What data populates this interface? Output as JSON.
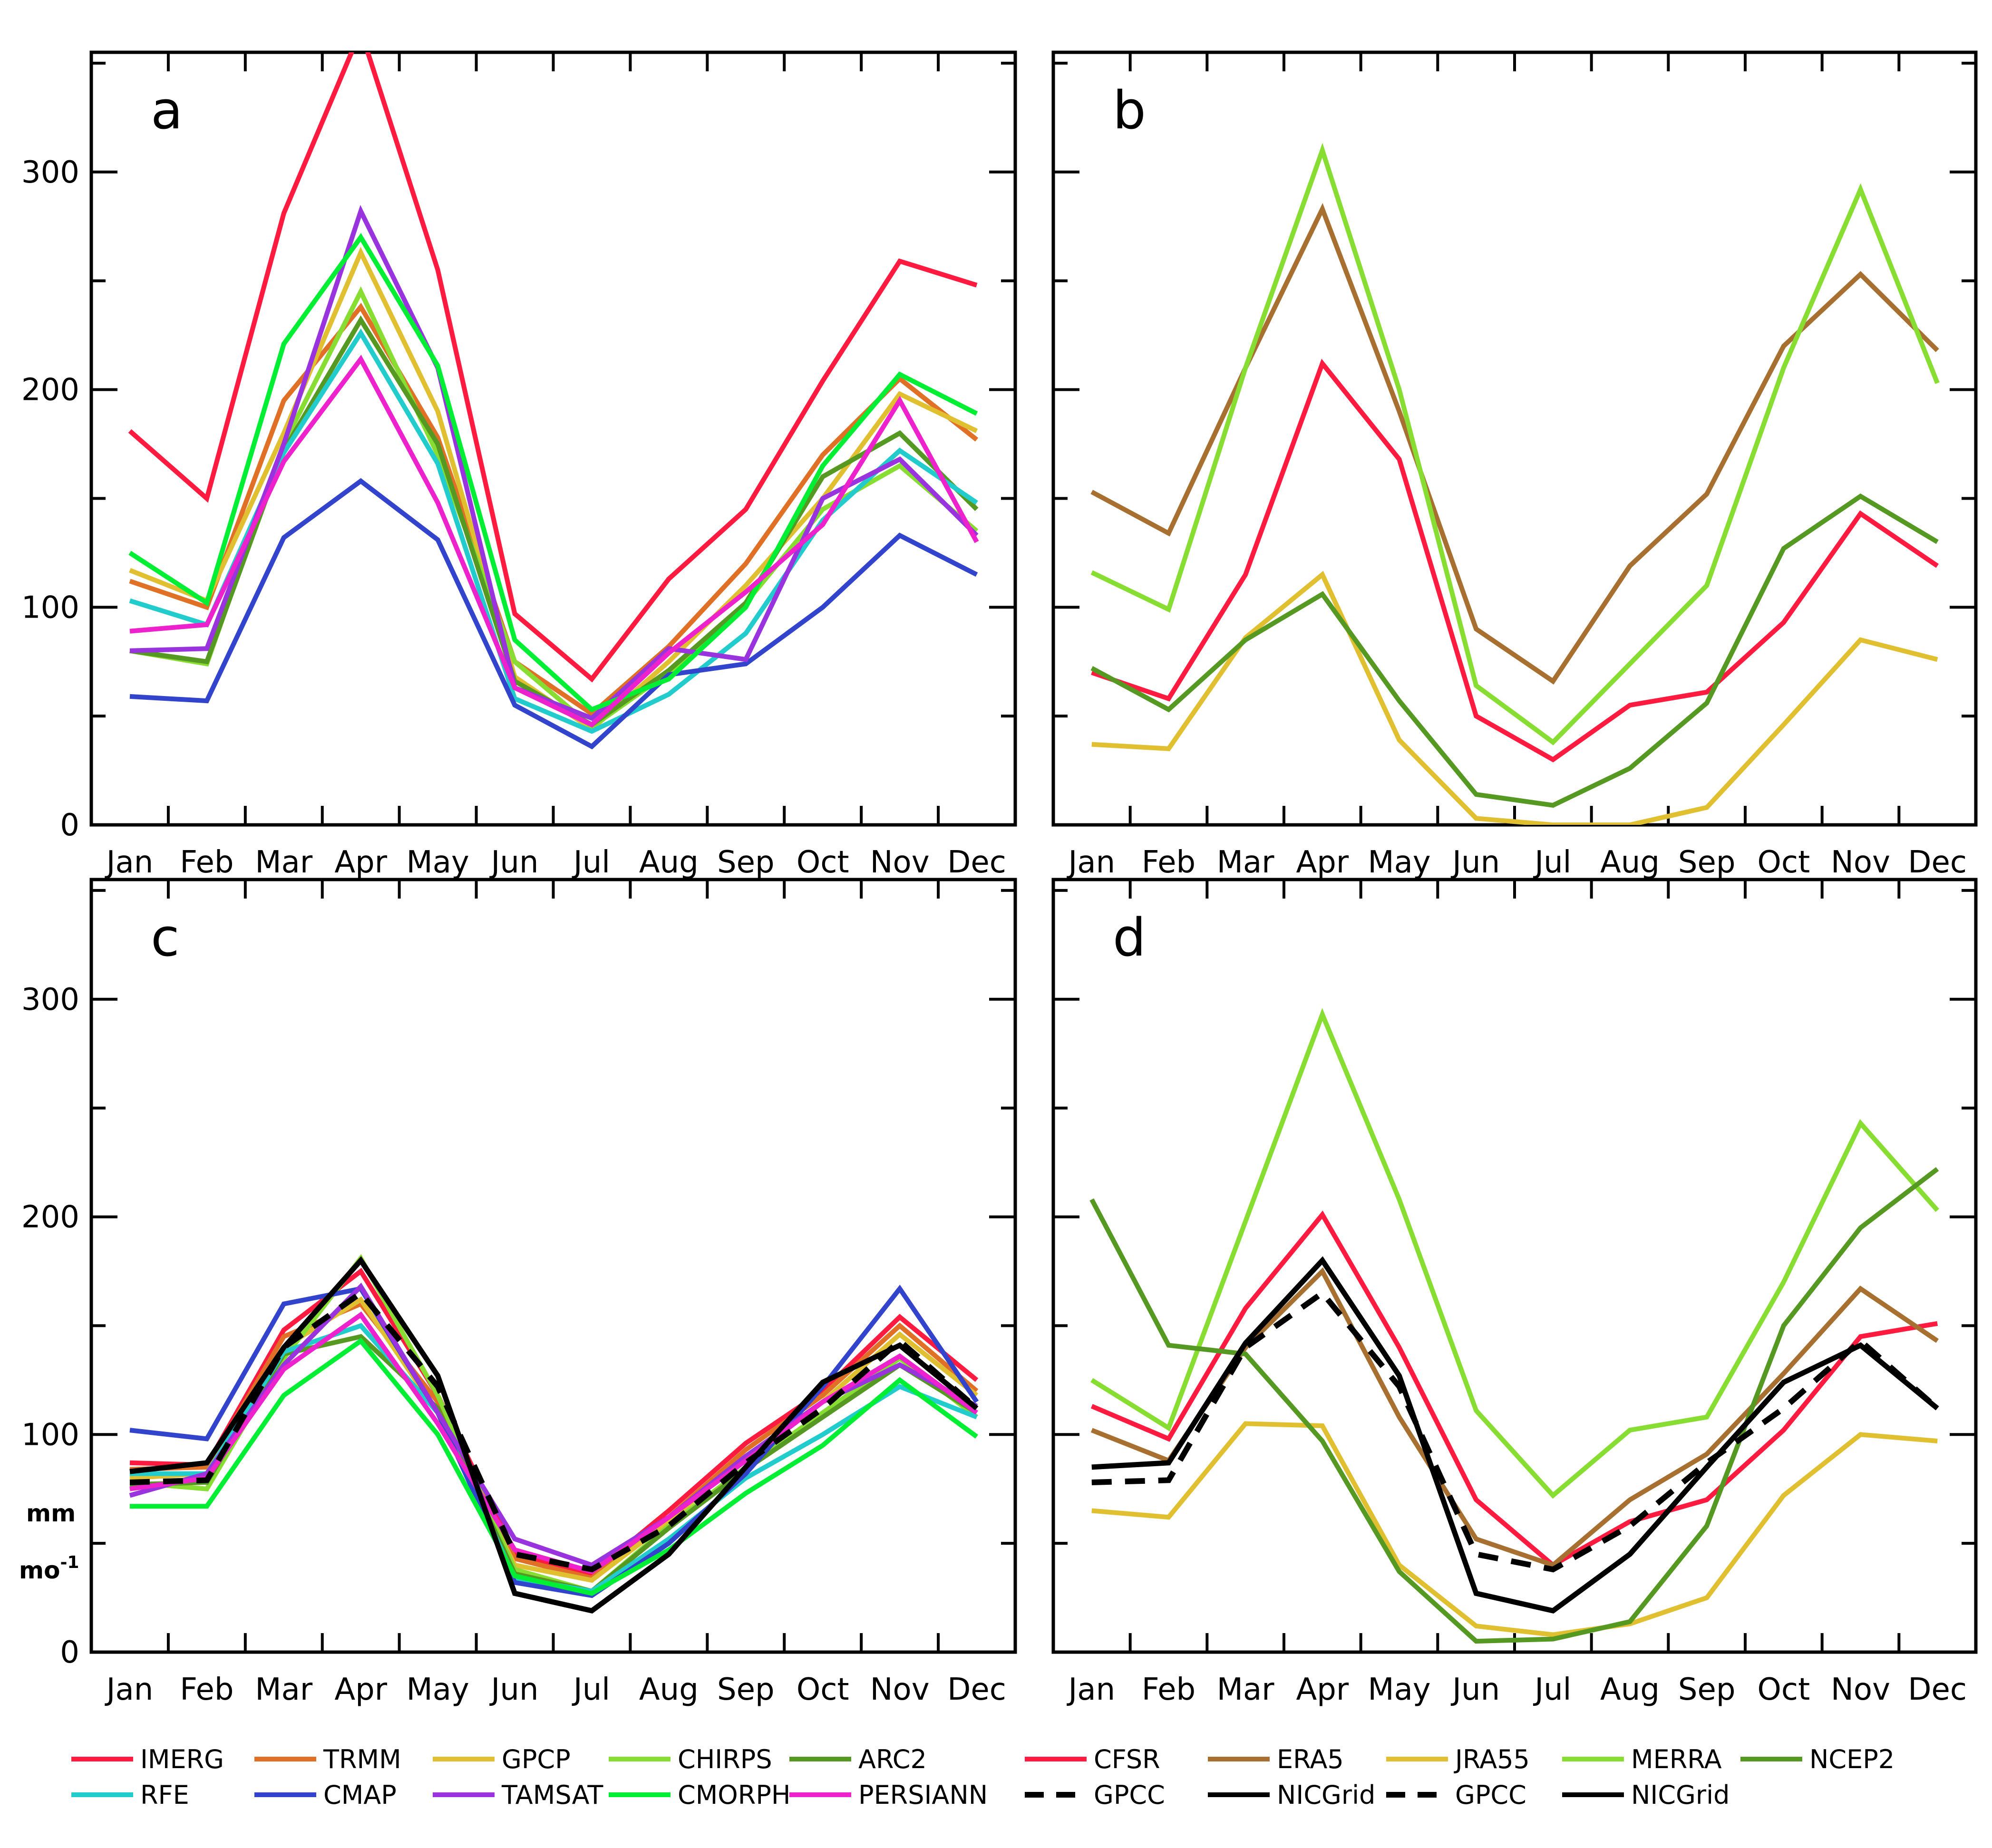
{
  "chart_data": [
    {
      "type": "line",
      "panel": "a",
      "categories": [
        "Jan",
        "Feb",
        "Mar",
        "Apr",
        "May",
        "Jun",
        "Jul",
        "Aug",
        "Sep",
        "Oct",
        "Nov",
        "Dec"
      ],
      "ylim": [
        0,
        355
      ],
      "yticks": [
        0,
        100,
        200,
        300
      ],
      "series": [
        {
          "name": "IMERG",
          "color": "#ff1a40",
          "values": [
            181,
            150,
            281,
            365,
            255,
            97,
            67,
            113,
            145,
            204,
            259,
            248
          ]
        },
        {
          "name": "TRMM",
          "color": "#e07025",
          "values": [
            112,
            100,
            195,
            238,
            178,
            75,
            51,
            82,
            120,
            170,
            205,
            177
          ]
        },
        {
          "name": "GPCP",
          "color": "#e0c030",
          "values": [
            117,
            103,
            180,
            263,
            190,
            68,
            44,
            75,
            110,
            150,
            198,
            181
          ]
        },
        {
          "name": "CHIRPS",
          "color": "#88dd33",
          "values": [
            80,
            74,
            175,
            245,
            170,
            75,
            45,
            70,
            102,
            145,
            165,
            135
          ]
        },
        {
          "name": "ARC2",
          "color": "#559922",
          "values": [
            80,
            75,
            172,
            232,
            175,
            66,
            46,
            71,
            102,
            160,
            180,
            145
          ]
        },
        {
          "name": "RFE",
          "color": "#22cccc",
          "values": [
            103,
            92,
            171,
            226,
            166,
            58,
            43,
            60,
            88,
            140,
            172,
            148
          ]
        },
        {
          "name": "CMAP",
          "color": "#3344cc",
          "values": [
            59,
            57,
            132,
            158,
            131,
            55,
            36,
            69,
            74,
            100,
            133,
            115
          ]
        },
        {
          "name": "TAMSAT",
          "color": "#9933dd",
          "values": [
            80,
            81,
            175,
            282,
            210,
            63,
            49,
            81,
            76,
            150,
            168,
            133
          ]
        },
        {
          "name": "CMORPH",
          "color": "#00ee33",
          "values": [
            125,
            102,
            221,
            270,
            211,
            85,
            53,
            67,
            100,
            165,
            207,
            189
          ]
        },
        {
          "name": "PERSIANN",
          "color": "#ee22cc",
          "values": [
            89,
            92,
            167,
            214,
            148,
            63,
            46,
            79,
            107,
            138,
            195,
            130
          ]
        }
      ]
    },
    {
      "type": "line",
      "panel": "b",
      "categories": [
        "Jan",
        "Feb",
        "Mar",
        "Apr",
        "May",
        "Jun",
        "Jul",
        "Aug",
        "Sep",
        "Oct",
        "Nov",
        "Dec"
      ],
      "ylim": [
        0,
        355
      ],
      "yticks": [
        0,
        100,
        200,
        300
      ],
      "series": [
        {
          "name": "CFSR",
          "color": "#ff1a40",
          "values": [
            70,
            58,
            115,
            212,
            168,
            50,
            30,
            55,
            61,
            93,
            143,
            119
          ]
        },
        {
          "name": "ERA5",
          "color": "#a87030",
          "values": [
            153,
            134,
            210,
            283,
            190,
            90,
            66,
            119,
            152,
            220,
            253,
            218
          ]
        },
        {
          "name": "JRA55",
          "color": "#e0c030",
          "values": [
            37,
            35,
            86,
            115,
            39,
            3,
            0,
            0,
            8,
            46,
            85,
            76
          ]
        },
        {
          "name": "MERRA",
          "color": "#88dd33",
          "values": [
            116,
            99,
            210,
            310,
            200,
            64,
            38,
            74,
            110,
            210,
            292,
            203
          ]
        },
        {
          "name": "NCEP2",
          "color": "#559922",
          "values": [
            72,
            53,
            85,
            106,
            57,
            14,
            9,
            26,
            56,
            127,
            151,
            130
          ]
        }
      ]
    },
    {
      "type": "line",
      "panel": "c",
      "categories": [
        "Jan",
        "Feb",
        "Mar",
        "Apr",
        "May",
        "Jun",
        "Jul",
        "Aug",
        "Sep",
        "Oct",
        "Nov",
        "Dec"
      ],
      "ylim": [
        0,
        355
      ],
      "yticks": [
        0,
        100,
        200,
        300
      ],
      "series": [
        {
          "name": "IMERG",
          "color": "#ff1a40",
          "values": [
            87,
            86,
            148,
            175,
            118,
            45,
            36,
            65,
            96,
            120,
            154,
            125
          ]
        },
        {
          "name": "TRMM",
          "color": "#e07025",
          "values": [
            84,
            85,
            145,
            160,
            115,
            43,
            34,
            62,
            93,
            118,
            150,
            120
          ]
        },
        {
          "name": "GPCP",
          "color": "#e0c030",
          "values": [
            80,
            82,
            140,
            162,
            110,
            40,
            33,
            60,
            90,
            115,
            146,
            118
          ]
        },
        {
          "name": "CHIRPS",
          "color": "#88dd33",
          "values": [
            78,
            75,
            135,
            181,
            118,
            38,
            28,
            58,
            85,
            110,
            135,
            108
          ]
        },
        {
          "name": "ARC2",
          "color": "#559922",
          "values": [
            77,
            78,
            137,
            145,
            112,
            36,
            28,
            57,
            84,
            108,
            132,
            110
          ]
        },
        {
          "name": "RFE",
          "color": "#22cccc",
          "values": [
            82,
            82,
            138,
            150,
            110,
            34,
            28,
            52,
            80,
            100,
            122,
            108
          ]
        },
        {
          "name": "CMAP",
          "color": "#3344cc",
          "values": [
            102,
            98,
            160,
            167,
            110,
            32,
            26,
            50,
            82,
            122,
            167,
            115
          ]
        },
        {
          "name": "TAMSAT",
          "color": "#9933dd",
          "values": [
            72,
            82,
            132,
            168,
            110,
            52,
            40,
            62,
            90,
            115,
            132,
            113
          ]
        },
        {
          "name": "CMORPH",
          "color": "#00ee33",
          "values": [
            67,
            67,
            118,
            143,
            100,
            35,
            27,
            47,
            73,
            95,
            125,
            99
          ]
        },
        {
          "name": "PERSIANN",
          "color": "#ee22cc",
          "values": [
            75,
            80,
            130,
            155,
            105,
            47,
            37,
            62,
            88,
            115,
            136,
            110
          ]
        },
        {
          "name": "GPCC",
          "color": "#000000",
          "dashed": true,
          "values": [
            78,
            79,
            140,
            165,
            122,
            45,
            38,
            58,
            87,
            112,
            143,
            112
          ]
        },
        {
          "name": "NICGrid",
          "color": "#000000",
          "values": [
            83,
            87,
            140,
            180,
            127,
            27,
            19,
            45,
            85,
            124,
            141,
            112
          ]
        }
      ]
    },
    {
      "type": "line",
      "panel": "d",
      "categories": [
        "Jan",
        "Feb",
        "Mar",
        "Apr",
        "May",
        "Jun",
        "Jul",
        "Aug",
        "Sep",
        "Oct",
        "Nov",
        "Dec"
      ],
      "ylim": [
        0,
        355
      ],
      "yticks": [
        0,
        100,
        200,
        300
      ],
      "series": [
        {
          "name": "CFSR",
          "color": "#ff1a40",
          "values": [
            113,
            98,
            158,
            201,
            140,
            70,
            40,
            60,
            70,
            102,
            145,
            151
          ]
        },
        {
          "name": "ERA5",
          "color": "#a87030",
          "values": [
            102,
            88,
            140,
            175,
            108,
            52,
            40,
            70,
            91,
            128,
            167,
            143
          ]
        },
        {
          "name": "JRA55",
          "color": "#e0c030",
          "values": [
            65,
            62,
            105,
            104,
            40,
            12,
            8,
            13,
            25,
            72,
            100,
            97
          ]
        },
        {
          "name": "MERRA",
          "color": "#88dd33",
          "values": [
            125,
            103,
            198,
            293,
            208,
            111,
            72,
            102,
            108,
            170,
            243,
            203
          ]
        },
        {
          "name": "NCEP2",
          "color": "#559922",
          "values": [
            208,
            141,
            137,
            97,
            37,
            5,
            6,
            14,
            58,
            150,
            195,
            222
          ]
        },
        {
          "name": "GPCC",
          "color": "#000000",
          "dashed": true,
          "values": [
            78,
            79,
            140,
            165,
            122,
            45,
            38,
            58,
            87,
            112,
            143,
            112
          ]
        },
        {
          "name": "NICGrid",
          "color": "#000000",
          "values": [
            85,
            87,
            142,
            180,
            127,
            27,
            19,
            45,
            85,
            124,
            141,
            112
          ]
        }
      ]
    }
  ],
  "panels": [
    {
      "letter": "a"
    },
    {
      "letter": "b"
    },
    {
      "letter": "c"
    },
    {
      "letter": "d"
    }
  ],
  "ylabel": {
    "line1": "mm",
    "line2": "mo",
    "sup": "-1"
  },
  "legend": [
    {
      "label": "IMERG",
      "color": "#ff1a40"
    },
    {
      "label": "TRMM",
      "color": "#e07025"
    },
    {
      "label": "GPCP",
      "color": "#e0c030"
    },
    {
      "label": "CHIRPS",
      "color": "#88dd33"
    },
    {
      "label": "ARC2",
      "color": "#559922"
    },
    {
      "label": "CFSR",
      "color": "#ff1a40"
    },
    {
      "label": "ERA5",
      "color": "#a87030"
    },
    {
      "label": "JRA55",
      "color": "#e0c030"
    },
    {
      "label": "MERRA",
      "color": "#88dd33"
    },
    {
      "label": "NCEP2",
      "color": "#559922"
    },
    {
      "label": "RFE",
      "color": "#22cccc"
    },
    {
      "label": "CMAP",
      "color": "#3344cc"
    },
    {
      "label": "TAMSAT",
      "color": "#9933dd"
    },
    {
      "label": "CMORPH",
      "color": "#00ee33"
    },
    {
      "label": "PERSIANN",
      "color": "#ee22cc"
    },
    {
      "label": "GPCC",
      "color": "#000000",
      "dashed": true
    },
    {
      "label": "NICGrid",
      "color": "#000000"
    },
    {
      "label": "GPCC",
      "color": "#000000",
      "dashed": true
    },
    {
      "label": "NICGrid",
      "color": "#000000"
    }
  ]
}
